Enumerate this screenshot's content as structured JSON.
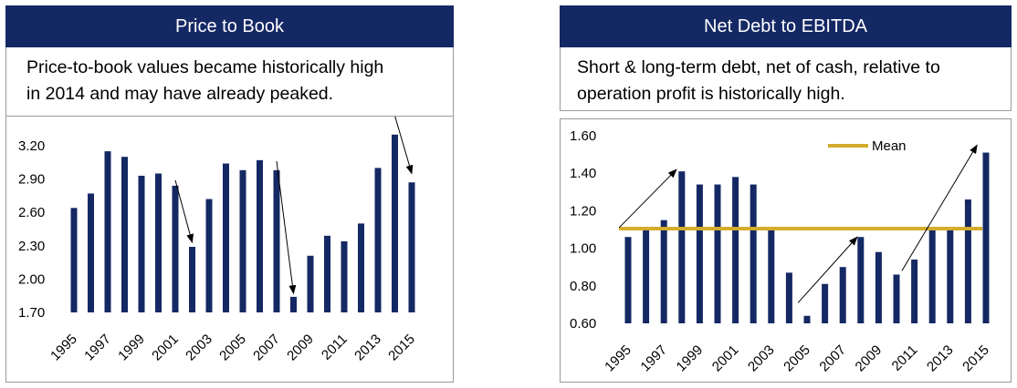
{
  "panels": [
    {
      "title": "Price to Book",
      "caption_line1": "Price-to-book values became historically high",
      "caption_line2": "in 2014 and may have already peaked."
    },
    {
      "title": "Net Debt to EBITDA",
      "caption_line1": "Short & long-term debt, net of cash, relative to",
      "caption_line2": "operation profit is historically high."
    }
  ],
  "colors": {
    "header": "#142864",
    "bar": "#142864",
    "mean_line": "#D4AC2B"
  },
  "chart_data": [
    {
      "type": "bar",
      "title": "Price to Book",
      "categories": [
        "1995",
        "1996",
        "1997",
        "1998",
        "1999",
        "2000",
        "2001",
        "2002",
        "2003",
        "2004",
        "2005",
        "2006",
        "2007",
        "2008",
        "2009",
        "2010",
        "2011",
        "2012",
        "2013",
        "2014",
        "2015"
      ],
      "values": [
        2.64,
        2.77,
        3.15,
        3.1,
        2.93,
        2.95,
        2.84,
        2.29,
        2.72,
        3.04,
        2.98,
        3.07,
        2.98,
        1.84,
        2.21,
        2.39,
        2.34,
        2.5,
        3.0,
        3.3,
        2.87
      ],
      "tick_labels_x": [
        "1995",
        "1997",
        "1999",
        "2001",
        "2003",
        "2005",
        "2007",
        "2009",
        "2011",
        "2013",
        "2015"
      ],
      "ylim": [
        1.7,
        3.2
      ],
      "yticks": [
        "1.70",
        "2.00",
        "2.30",
        "2.60",
        "2.90",
        "3.20"
      ],
      "grid": false,
      "annotations": [
        {
          "type": "arrow",
          "from": [
            "2001",
            2.89
          ],
          "to": [
            "2002",
            2.33
          ]
        },
        {
          "type": "arrow",
          "from": [
            "2007",
            3.06
          ],
          "to": [
            "2008",
            1.87
          ]
        },
        {
          "type": "arrow",
          "from": [
            "2014",
            3.47
          ],
          "to": [
            "2015",
            2.95
          ]
        }
      ]
    },
    {
      "type": "bar",
      "title": "Net Debt to EBITDA",
      "categories": [
        "1995",
        "1996",
        "1997",
        "1998",
        "1999",
        "2000",
        "2001",
        "2002",
        "2003",
        "2004",
        "2005",
        "2006",
        "2007",
        "2008",
        "2009",
        "2010",
        "2011",
        "2012",
        "2013",
        "2014",
        "2015"
      ],
      "values": [
        1.06,
        1.1,
        1.15,
        1.41,
        1.34,
        1.34,
        1.38,
        1.34,
        1.1,
        0.87,
        0.64,
        0.81,
        0.9,
        1.06,
        0.98,
        0.86,
        0.94,
        1.1,
        1.1,
        1.26,
        1.51
      ],
      "tick_labels_x": [
        "1995",
        "1997",
        "1999",
        "2001",
        "2003",
        "2005",
        "2007",
        "2009",
        "2011",
        "2013",
        "2015"
      ],
      "ylim": [
        0.6,
        1.6
      ],
      "yticks": [
        "0.60",
        "0.80",
        "1.00",
        "1.20",
        "1.40",
        "1.60"
      ],
      "grid": false,
      "mean": 1.105,
      "legend": {
        "label": "Mean",
        "position": "top-right"
      },
      "annotations": [
        {
          "type": "arrow",
          "from": [
            "1994.5",
            1.11
          ],
          "to": [
            "1997.7",
            1.42
          ]
        },
        {
          "type": "arrow",
          "from": [
            "2004.5",
            0.71
          ],
          "to": [
            "2007.8",
            1.06
          ]
        },
        {
          "type": "arrow",
          "from": [
            "2010.3",
            0.88
          ],
          "to": [
            "2014.5",
            1.55
          ]
        }
      ]
    }
  ]
}
